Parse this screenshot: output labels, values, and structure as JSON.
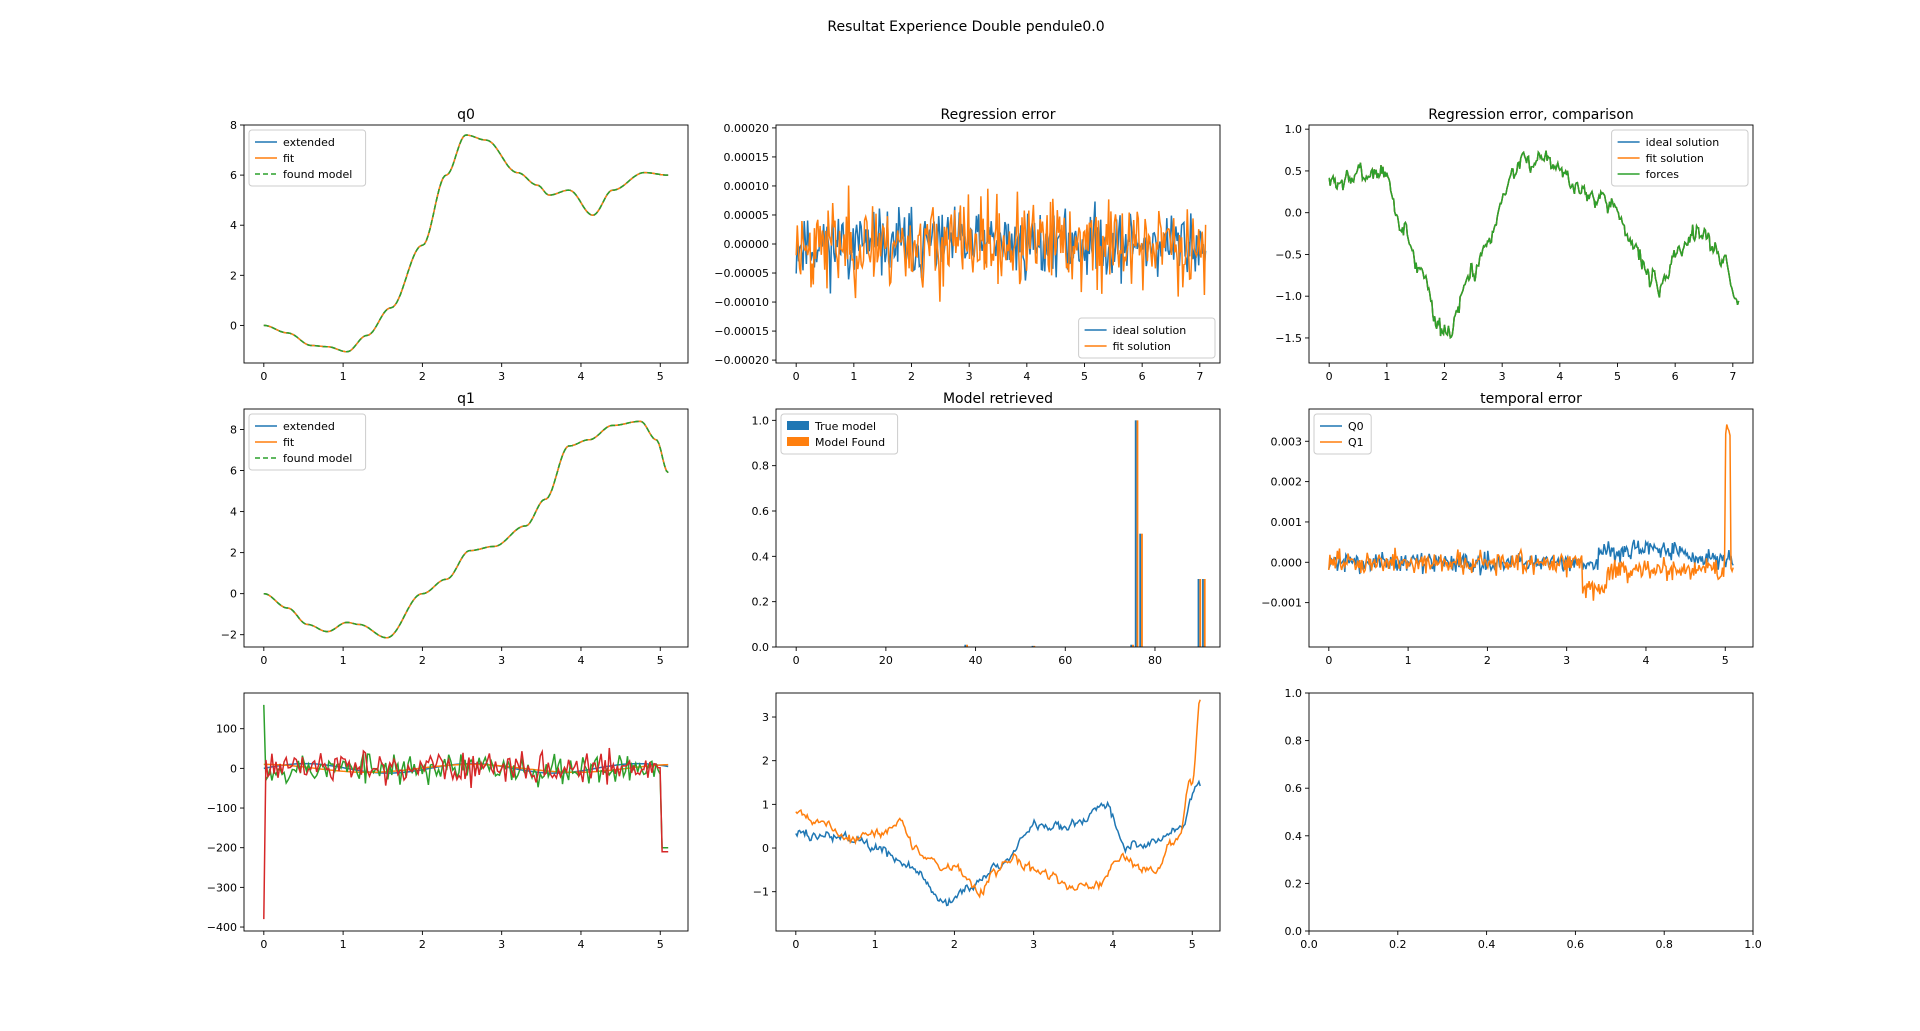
{
  "figure": {
    "suptitle": "Resultat Experience Double pendule0.0",
    "colors": {
      "c0": "#1f77b4",
      "c1": "#ff7f0e",
      "c2": "#2ca02c",
      "c3": "#d62728"
    }
  },
  "chart_data": [
    {
      "id": "q0",
      "type": "line",
      "title": "q0",
      "xlim": [
        -0.25,
        5.35
      ],
      "ylim": [
        -1.5,
        8.0
      ],
      "xticks": [
        0,
        1,
        2,
        3,
        4,
        5
      ],
      "yticks": [
        0,
        2,
        4,
        6,
        8
      ],
      "legend": "upper-left",
      "series": [
        {
          "name": "extended",
          "color": "#1f77b4",
          "style": "solid",
          "shape": "q0"
        },
        {
          "name": "fit",
          "color": "#ff7f0e",
          "style": "solid",
          "shape": "q0"
        },
        {
          "name": "found model",
          "color": "#2ca02c",
          "style": "dashed",
          "shape": "q0"
        }
      ]
    },
    {
      "id": "reg",
      "type": "line",
      "title": "Regression error",
      "xlim": [
        -0.35,
        7.35
      ],
      "ylim": [
        -0.000205,
        0.000205
      ],
      "xticks": [
        0,
        1,
        2,
        3,
        4,
        5,
        6,
        7
      ],
      "yticks": [
        -0.0002,
        -0.00015,
        -0.0001,
        -5e-05,
        0,
        5e-05,
        0.0001,
        0.00015,
        0.0002
      ],
      "yticklabels": [
        "−0.00020",
        "−0.00015",
        "−0.00010",
        "−0.00005",
        "0.00000",
        "0.00005",
        "0.00010",
        "0.00015",
        "0.00020"
      ],
      "legend": "lower-right",
      "series": [
        {
          "name": "ideal solution",
          "color": "#1f77b4",
          "style": "solid",
          "shape": "noise6"
        },
        {
          "name": "fit solution",
          "color": "#ff7f0e",
          "style": "solid",
          "shape": "noise7"
        }
      ]
    },
    {
      "id": "cmp",
      "type": "line",
      "title": "Regression error, comparison",
      "xlim": [
        -0.35,
        7.35
      ],
      "ylim": [
        -1.8,
        1.05
      ],
      "xticks": [
        0,
        1,
        2,
        3,
        4,
        5,
        6,
        7
      ],
      "yticks": [
        -1.5,
        -1.0,
        -0.5,
        0.0,
        0.5,
        1.0
      ],
      "yticklabels": [
        "−1.5",
        "−1.0",
        "−0.5",
        "0.0",
        "0.5",
        "1.0"
      ],
      "legend": "upper-right",
      "series": [
        {
          "name": "ideal solution",
          "color": "#1f77b4",
          "style": "solid",
          "shape": "forces"
        },
        {
          "name": "fit solution",
          "color": "#ff7f0e",
          "style": "solid",
          "shape": "forces"
        },
        {
          "name": "forces",
          "color": "#2ca02c",
          "style": "solid",
          "shape": "forces"
        }
      ]
    },
    {
      "id": "q1",
      "type": "line",
      "title": "q1",
      "xlim": [
        -0.25,
        5.35
      ],
      "ylim": [
        -2.6,
        9.0
      ],
      "xticks": [
        0,
        1,
        2,
        3,
        4,
        5
      ],
      "yticks": [
        -2,
        0,
        2,
        4,
        6,
        8
      ],
      "yticklabels": [
        "−2",
        "0",
        "2",
        "4",
        "6",
        "8"
      ],
      "legend": "upper-left",
      "series": [
        {
          "name": "extended",
          "color": "#1f77b4",
          "style": "solid",
          "shape": "q1"
        },
        {
          "name": "fit",
          "color": "#ff7f0e",
          "style": "solid",
          "shape": "q1"
        },
        {
          "name": "found model",
          "color": "#2ca02c",
          "style": "dashed",
          "shape": "q1"
        }
      ]
    },
    {
      "id": "model",
      "type": "bar",
      "title": "Model retrieved",
      "xlim": [
        -4.5,
        94.5
      ],
      "ylim": [
        0,
        1.05
      ],
      "xticks": [
        0,
        20,
        40,
        60,
        80
      ],
      "yticks": [
        0.0,
        0.2,
        0.4,
        0.6,
        0.8,
        1.0
      ],
      "yticklabels": [
        "0.0",
        "0.2",
        "0.4",
        "0.6",
        "0.8",
        "1.0"
      ],
      "legend": "upper-left",
      "series": [
        {
          "name": "True model",
          "color": "#1f77b4",
          "bars": [
            [
              37.5,
              0.01
            ],
            [
              52.5,
              0.005
            ],
            [
              74.5,
              0.01
            ],
            [
              75.5,
              1.0
            ],
            [
              76.5,
              0.5
            ],
            [
              89.5,
              0.3
            ],
            [
              90.5,
              0.3
            ]
          ]
        },
        {
          "name": "Model Found",
          "color": "#ff7f0e",
          "bars": [
            [
              37.9,
              0.01
            ],
            [
              52.9,
              0.005
            ],
            [
              74.9,
              0.01
            ],
            [
              75.9,
              1.0
            ],
            [
              76.9,
              0.5
            ],
            [
              89.9,
              0.3
            ],
            [
              90.9,
              0.3
            ]
          ]
        }
      ]
    },
    {
      "id": "temp",
      "type": "line",
      "title": "temporal error",
      "xlim": [
        -0.25,
        5.35
      ],
      "ylim": [
        -0.0021,
        0.0038
      ],
      "xticks": [
        0,
        1,
        2,
        3,
        4,
        5
      ],
      "yticks": [
        -0.001,
        0.0,
        0.001,
        0.002,
        0.003
      ],
      "yticklabels": [
        "−0.001",
        "0.000",
        "0.001",
        "0.002",
        "0.003"
      ],
      "legend": "upper-left",
      "series": [
        {
          "name": "Q0",
          "color": "#1f77b4",
          "style": "solid",
          "shape": "tq0"
        },
        {
          "name": "Q1",
          "color": "#ff7f0e",
          "style": "solid",
          "shape": "tq1"
        }
      ]
    },
    {
      "id": "acc",
      "type": "line",
      "title": "",
      "xlim": [
        -0.25,
        5.35
      ],
      "ylim": [
        -410,
        190
      ],
      "xticks": [
        0,
        1,
        2,
        3,
        4,
        5
      ],
      "yticks": [
        -400,
        -300,
        -200,
        -100,
        0,
        100
      ],
      "yticklabels": [
        "−400",
        "−300",
        "−200",
        "−100",
        "0",
        "100"
      ],
      "legend": "none",
      "series": [
        {
          "color": "#1f77b4",
          "style": "solid",
          "shape": "smallwave"
        },
        {
          "color": "#ff7f0e",
          "style": "solid",
          "shape": "smallwave2"
        },
        {
          "color": "#2ca02c",
          "style": "solid",
          "shape": "accg"
        },
        {
          "color": "#d62728",
          "style": "solid",
          "shape": "accr"
        }
      ]
    },
    {
      "id": "forces2",
      "type": "line",
      "title": "",
      "xlim": [
        -0.25,
        5.35
      ],
      "ylim": [
        -1.9,
        3.55
      ],
      "xticks": [
        0,
        1,
        2,
        3,
        4,
        5
      ],
      "yticks": [
        -1,
        0,
        1,
        2,
        3
      ],
      "yticklabels": [
        "−1",
        "0",
        "1",
        "2",
        "3"
      ],
      "legend": "none",
      "series": [
        {
          "color": "#1f77b4",
          "style": "solid",
          "shape": "f2b"
        },
        {
          "color": "#ff7f0e",
          "style": "solid",
          "shape": "f2o"
        }
      ]
    },
    {
      "id": "empty",
      "type": "line",
      "title": "",
      "xlim": [
        0,
        1
      ],
      "ylim": [
        0,
        1
      ],
      "xticks": [
        0.0,
        0.2,
        0.4,
        0.6,
        0.8,
        1.0
      ],
      "yticks": [
        0.0,
        0.2,
        0.4,
        0.6,
        0.8,
        1.0
      ],
      "xticklabels": [
        "0.0",
        "0.2",
        "0.4",
        "0.6",
        "0.8",
        "1.0"
      ],
      "yticklabels": [
        "0.0",
        "0.2",
        "0.4",
        "0.6",
        "0.8",
        "1.0"
      ],
      "legend": "none",
      "series": []
    }
  ]
}
